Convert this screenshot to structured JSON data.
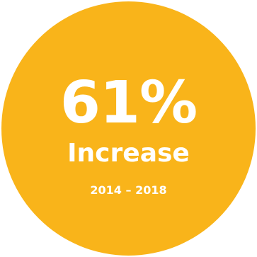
{
  "stat": {
    "value": "61%",
    "label": "Increase",
    "period": "2014 – 2018"
  },
  "colors": {
    "circle": "#f9b41a",
    "text": "#ffffff"
  }
}
